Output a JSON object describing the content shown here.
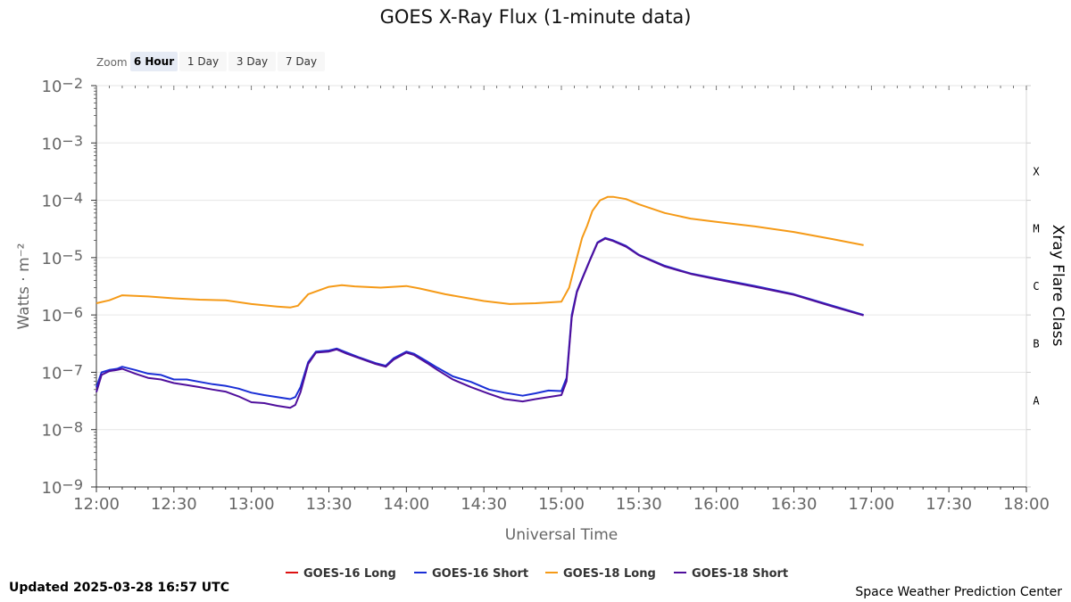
{
  "page": {
    "updated": "Updated 2025-03-28 16:57 UTC",
    "credit": "Space Weather Prediction Center"
  },
  "zoom": {
    "label": "Zoom",
    "buttons": [
      {
        "label": "6 Hour",
        "active": true
      },
      {
        "label": "1 Day",
        "active": false
      },
      {
        "label": "3 Day",
        "active": false
      },
      {
        "label": "7 Day",
        "active": false
      }
    ]
  },
  "colors": {
    "goes16_long": "#dd1111",
    "goes16_short": "#1a2fd6",
    "goes18_long": "#f59a17",
    "goes18_short": "#4f0f9c",
    "grid": "#e6e6e6"
  },
  "chart_data": {
    "type": "line",
    "title": "GOES X-Ray Flux (1-minute data)",
    "xlabel": "Universal Time",
    "ylabel": "Watts · m⁻²",
    "y2label": "Xray Flare Class",
    "y_scale": "log",
    "ylim": [
      1e-09,
      0.01
    ],
    "xlim": [
      "12:00",
      "18:00"
    ],
    "x_ticks": [
      "12:00",
      "12:30",
      "13:00",
      "13:30",
      "14:00",
      "14:30",
      "15:00",
      "15:30",
      "16:00",
      "16:30",
      "17:00",
      "17:30",
      "18:00"
    ],
    "y_ticks": [
      {
        "base": "10",
        "exp": "−2",
        "value": 0.01
      },
      {
        "base": "10",
        "exp": "−3",
        "value": 0.001
      },
      {
        "base": "10",
        "exp": "−4",
        "value": 0.0001
      },
      {
        "base": "10",
        "exp": "−5",
        "value": 1e-05
      },
      {
        "base": "10",
        "exp": "−6",
        "value": 1e-06
      },
      {
        "base": "10",
        "exp": "−7",
        "value": 1e-07
      },
      {
        "base": "10",
        "exp": "−8",
        "value": 1e-08
      },
      {
        "base": "10",
        "exp": "−9",
        "value": 1e-09
      }
    ],
    "flare_classes": [
      {
        "label": "X",
        "center": 0.000316
      },
      {
        "label": "M",
        "center": 3.16e-05
      },
      {
        "label": "C",
        "center": 3.16e-06
      },
      {
        "label": "B",
        "center": 3.16e-07
      },
      {
        "label": "A",
        "center": 3.16e-08
      }
    ],
    "legend_position": "bottom",
    "series": [
      {
        "name": "GOES-18 Long",
        "color_key": "goes18_long",
        "points": [
          [
            "12:00",
            1.6e-06
          ],
          [
            "12:05",
            1.8e-06
          ],
          [
            "12:10",
            2.2e-06
          ],
          [
            "12:20",
            2.1e-06
          ],
          [
            "12:30",
            1.95e-06
          ],
          [
            "12:40",
            1.85e-06
          ],
          [
            "12:50",
            1.8e-06
          ],
          [
            "13:00",
            1.55e-06
          ],
          [
            "13:10",
            1.4e-06
          ],
          [
            "13:15",
            1.35e-06
          ],
          [
            "13:18",
            1.45e-06
          ],
          [
            "13:22",
            2.3e-06
          ],
          [
            "13:30",
            3.1e-06
          ],
          [
            "13:35",
            3.3e-06
          ],
          [
            "13:40",
            3.15e-06
          ],
          [
            "13:50",
            3e-06
          ],
          [
            "14:00",
            3.2e-06
          ],
          [
            "14:05",
            2.9e-06
          ],
          [
            "14:15",
            2.3e-06
          ],
          [
            "14:30",
            1.75e-06
          ],
          [
            "14:40",
            1.55e-06
          ],
          [
            "14:50",
            1.6e-06
          ],
          [
            "15:00",
            1.7e-06
          ],
          [
            "15:03",
            3e-06
          ],
          [
            "15:06",
            1e-05
          ],
          [
            "15:08",
            2.2e-05
          ],
          [
            "15:10",
            3.6e-05
          ],
          [
            "15:12",
            6.5e-05
          ],
          [
            "15:15",
            0.0001
          ],
          [
            "15:18",
            0.000115
          ],
          [
            "15:20",
            0.000115
          ],
          [
            "15:25",
            0.000105
          ],
          [
            "15:30",
            8.5e-05
          ],
          [
            "15:40",
            6e-05
          ],
          [
            "15:50",
            4.8e-05
          ],
          [
            "16:00",
            4.2e-05
          ],
          [
            "16:15",
            3.5e-05
          ],
          [
            "16:30",
            2.8e-05
          ],
          [
            "16:45",
            2.1e-05
          ],
          [
            "16:57",
            1.65e-05
          ]
        ]
      },
      {
        "name": "GOES-16 Short",
        "color_key": "goes16_short",
        "points": [
          [
            "12:00",
            5.5e-08
          ],
          [
            "12:02",
            1e-07
          ],
          [
            "12:05",
            1.1e-07
          ],
          [
            "12:08",
            1.15e-07
          ],
          [
            "12:10",
            1.25e-07
          ],
          [
            "12:15",
            1.1e-07
          ],
          [
            "12:20",
            9.5e-08
          ],
          [
            "12:25",
            9e-08
          ],
          [
            "12:30",
            7.5e-08
          ],
          [
            "12:35",
            7.5e-08
          ],
          [
            "12:40",
            6.8e-08
          ],
          [
            "12:45",
            6.2e-08
          ],
          [
            "12:50",
            5.8e-08
          ],
          [
            "12:55",
            5.2e-08
          ],
          [
            "13:00",
            4.4e-08
          ],
          [
            "13:05",
            4e-08
          ],
          [
            "13:10",
            3.7e-08
          ],
          [
            "13:15",
            3.4e-08
          ],
          [
            "13:17",
            3.7e-08
          ],
          [
            "13:19",
            5.5e-08
          ],
          [
            "13:22",
            1.5e-07
          ],
          [
            "13:25",
            2.3e-07
          ],
          [
            "13:30",
            2.4e-07
          ],
          [
            "13:33",
            2.6e-07
          ],
          [
            "13:37",
            2.2e-07
          ],
          [
            "13:42",
            1.8e-07
          ],
          [
            "13:48",
            1.45e-07
          ],
          [
            "13:52",
            1.3e-07
          ],
          [
            "13:55",
            1.75e-07
          ],
          [
            "14:00",
            2.3e-07
          ],
          [
            "14:03",
            2.1e-07
          ],
          [
            "14:08",
            1.55e-07
          ],
          [
            "14:12",
            1.2e-07
          ],
          [
            "14:18",
            8.5e-08
          ],
          [
            "14:25",
            6.8e-08
          ],
          [
            "14:32",
            5e-08
          ],
          [
            "14:38",
            4.4e-08
          ],
          [
            "14:45",
            3.9e-08
          ],
          [
            "14:50",
            4.3e-08
          ],
          [
            "14:55",
            4.8e-08
          ],
          [
            "15:00",
            4.7e-08
          ],
          [
            "15:02",
            8e-08
          ],
          [
            "15:04",
            1e-06
          ],
          [
            "15:06",
            2.6e-06
          ],
          [
            "15:08",
            4.3e-06
          ],
          [
            "15:11",
            9e-06
          ],
          [
            "15:14",
            1.85e-05
          ],
          [
            "15:17",
            2.2e-05
          ],
          [
            "15:20",
            2e-05
          ],
          [
            "15:25",
            1.6e-05
          ],
          [
            "15:30",
            1.12e-05
          ],
          [
            "15:40",
            7.2e-06
          ],
          [
            "15:50",
            5.3e-06
          ],
          [
            "16:00",
            4.3e-06
          ],
          [
            "16:15",
            3.2e-06
          ],
          [
            "16:30",
            2.3e-06
          ],
          [
            "16:45",
            1.45e-06
          ],
          [
            "16:57",
            1e-06
          ]
        ]
      },
      {
        "name": "GOES-18 Short",
        "color_key": "goes18_short",
        "points": [
          [
            "12:00",
            4.5e-08
          ],
          [
            "12:02",
            9e-08
          ],
          [
            "12:05",
            1.05e-07
          ],
          [
            "12:08",
            1.1e-07
          ],
          [
            "12:10",
            1.15e-07
          ],
          [
            "12:15",
            9.5e-08
          ],
          [
            "12:20",
            8e-08
          ],
          [
            "12:25",
            7.5e-08
          ],
          [
            "12:30",
            6.5e-08
          ],
          [
            "12:35",
            6e-08
          ],
          [
            "12:40",
            5.5e-08
          ],
          [
            "12:45",
            5e-08
          ],
          [
            "12:50",
            4.6e-08
          ],
          [
            "12:55",
            3.8e-08
          ],
          [
            "13:00",
            3e-08
          ],
          [
            "13:05",
            2.9e-08
          ],
          [
            "13:10",
            2.6e-08
          ],
          [
            "13:15",
            2.4e-08
          ],
          [
            "13:17",
            2.7e-08
          ],
          [
            "13:19",
            4.5e-08
          ],
          [
            "13:22",
            1.4e-07
          ],
          [
            "13:25",
            2.2e-07
          ],
          [
            "13:30",
            2.3e-07
          ],
          [
            "13:33",
            2.5e-07
          ],
          [
            "13:37",
            2.1e-07
          ],
          [
            "13:42",
            1.75e-07
          ],
          [
            "13:48",
            1.4e-07
          ],
          [
            "13:52",
            1.25e-07
          ],
          [
            "13:55",
            1.65e-07
          ],
          [
            "14:00",
            2.2e-07
          ],
          [
            "14:03",
            2e-07
          ],
          [
            "14:08",
            1.45e-07
          ],
          [
            "14:12",
            1.1e-07
          ],
          [
            "14:18",
            7.5e-08
          ],
          [
            "14:25",
            5.5e-08
          ],
          [
            "14:32",
            4.2e-08
          ],
          [
            "14:38",
            3.4e-08
          ],
          [
            "14:45",
            3.1e-08
          ],
          [
            "14:50",
            3.4e-08
          ],
          [
            "14:55",
            3.7e-08
          ],
          [
            "15:00",
            4e-08
          ],
          [
            "15:02",
            7e-08
          ],
          [
            "15:04",
            9e-07
          ],
          [
            "15:06",
            2.5e-06
          ],
          [
            "15:08",
            4.2e-06
          ],
          [
            "15:11",
            8.8e-06
          ],
          [
            "15:14",
            1.8e-05
          ],
          [
            "15:17",
            2.15e-05
          ],
          [
            "15:20",
            1.95e-05
          ],
          [
            "15:25",
            1.55e-05
          ],
          [
            "15:30",
            1.1e-05
          ],
          [
            "15:40",
            7e-06
          ],
          [
            "15:50",
            5.2e-06
          ],
          [
            "16:00",
            4.2e-06
          ],
          [
            "16:15",
            3.1e-06
          ],
          [
            "16:30",
            2.25e-06
          ],
          [
            "16:45",
            1.4e-06
          ],
          [
            "16:57",
            9.8e-07
          ]
        ]
      }
    ],
    "legend": [
      {
        "name": "GOES-16 Long",
        "color_key": "goes16_long"
      },
      {
        "name": "GOES-16 Short",
        "color_key": "goes16_short"
      },
      {
        "name": "GOES-18 Long",
        "color_key": "goes18_long"
      },
      {
        "name": "GOES-18 Short",
        "color_key": "goes18_short"
      }
    ]
  }
}
